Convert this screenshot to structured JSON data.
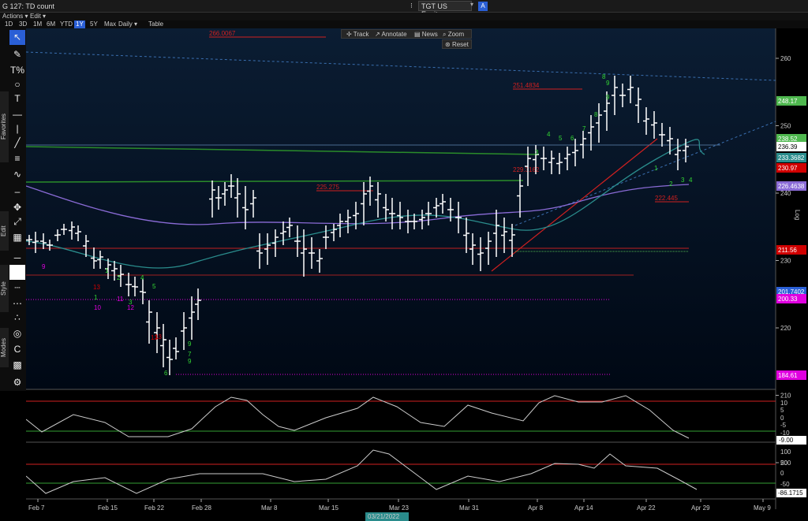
{
  "window": {
    "title": "G 127: TD count",
    "ticker_label": "TGT US Equity",
    "ticker_btn": "A"
  },
  "menu": {
    "actions": "Actions ▾",
    "edit": "Edit ▾"
  },
  "ranges": [
    "1D",
    "3D",
    "1M",
    "6M",
    "YTD",
    "1Y",
    "5Y",
    "Max",
    "Daily ▾",
    "Table"
  ],
  "active_range": "1Y",
  "toolbar": {
    "favorites_label": "Favorites",
    "edit_label": "Edit",
    "style_label": "Style",
    "modes_label": "Modes",
    "tools": [
      {
        "name": "pointer-icon",
        "glyph": "↖"
      },
      {
        "name": "pen-icon",
        "glyph": "✎"
      },
      {
        "name": "fib-icon",
        "glyph": "T%"
      },
      {
        "name": "ellipse-icon",
        "glyph": "○"
      },
      {
        "name": "text-icon",
        "glyph": "T"
      },
      {
        "name": "horizontal-line-icon",
        "glyph": "—"
      },
      {
        "name": "vertical-line-icon",
        "glyph": "|"
      },
      {
        "name": "trendline-icon",
        "glyph": "╱"
      },
      {
        "name": "channel-icon",
        "glyph": "≡"
      },
      {
        "name": "zigzag-icon",
        "glyph": "∿"
      },
      {
        "name": "eraser-icon",
        "glyph": "–"
      },
      {
        "name": "move-icon",
        "glyph": "✥"
      },
      {
        "name": "resize-icon",
        "glyph": "⤢"
      },
      {
        "name": "pattern-icon",
        "glyph": "▦"
      },
      {
        "name": "width-icon",
        "glyph": "─"
      },
      {
        "name": "color-icon",
        "glyph": " "
      },
      {
        "name": "dash-icon",
        "glyph": "┈"
      },
      {
        "name": "dotted-icon",
        "glyph": "⋯"
      },
      {
        "name": "magnet-icon",
        "glyph": "∴"
      },
      {
        "name": "snap-icon",
        "glyph": "◎"
      },
      {
        "name": "lock-icon",
        "glyph": "C"
      },
      {
        "name": "grid-icon",
        "glyph": "▩"
      },
      {
        "name": "settings-icon",
        "glyph": "⚙"
      }
    ]
  },
  "chart_toolbar": {
    "track": "Track",
    "annotate": "Annotate",
    "news": "News",
    "zoom": "Zoom",
    "reset": "Reset"
  },
  "log_label": "Log",
  "chart_data": {
    "type": "candlestick",
    "price_ticks": [
      "260",
      "250",
      "240",
      "230",
      "220",
      "210",
      "200",
      "190"
    ],
    "osc1_ticks": [
      "10",
      "5",
      "0",
      "-5",
      "-10"
    ],
    "osc2_ticks": [
      "100",
      "50",
      "0",
      "-50",
      "-100"
    ],
    "x_ticks": [
      "Feb 7",
      "Feb 15",
      "Feb 22",
      "Feb 28",
      "Mar 8",
      "Mar 15",
      "Mar 23",
      "Mar 31",
      "Apr 8",
      "Apr 14",
      "Apr 22",
      "Apr 29",
      "May 9"
    ],
    "cursor_date": "03/21/2022",
    "price_tags": [
      {
        "value": "248.17",
        "color": "#4fb84f"
      },
      {
        "value": "238.52",
        "color": "#4fb84f"
      },
      {
        "value": "236.39",
        "color": "#ffffff"
      },
      {
        "value": "233.3682",
        "color": "#2a8c8c"
      },
      {
        "value": "230.97",
        "color": "#d00000"
      },
      {
        "value": "226.4638",
        "color": "#8a6bd6"
      },
      {
        "value": "211.56",
        "color": "#d00000"
      },
      {
        "value": "201.7402",
        "color": "#2a5fd6"
      },
      {
        "value": "200.33",
        "color": "#e000e0"
      },
      {
        "value": "184.61",
        "color": "#e000e0"
      }
    ],
    "osc1_tag": "-9.00",
    "osc2_tag": "-86.1715",
    "level_labels": [
      {
        "text": "266.0067"
      },
      {
        "text": "251.4834"
      },
      {
        "text": "225.275"
      },
      {
        "text": "229.3162"
      },
      {
        "text": "222.445"
      }
    ],
    "td_counts": [
      "13",
      "13",
      "13",
      "1",
      "10",
      "11",
      "12",
      "9",
      "9",
      "9",
      "7",
      "6",
      "5",
      "4",
      "3",
      "2",
      "1",
      "8",
      "9",
      "3",
      "4",
      "5",
      "6",
      "7",
      "8",
      "9",
      "1",
      "2",
      "3",
      "4"
    ]
  }
}
